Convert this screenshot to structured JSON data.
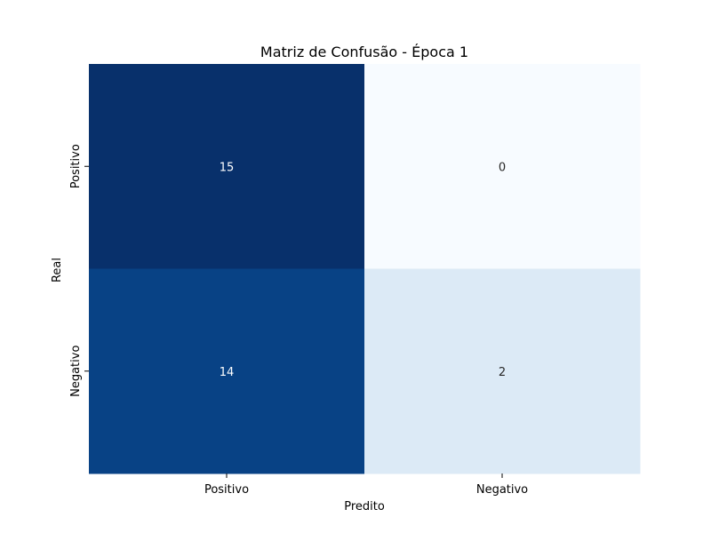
{
  "chart_data": {
    "type": "heatmap",
    "title": "Matriz de Confusão - Época 1",
    "xlabel": "Predito",
    "ylabel": "Real",
    "x_categories": [
      "Positivo",
      "Negativo"
    ],
    "y_categories": [
      "Positivo",
      "Negativo"
    ],
    "values": [
      [
        15,
        0
      ],
      [
        14,
        2
      ]
    ],
    "colormap": "Blues",
    "value_range": [
      0,
      15
    ],
    "annotations": true,
    "colorbar": false,
    "grid": false
  }
}
